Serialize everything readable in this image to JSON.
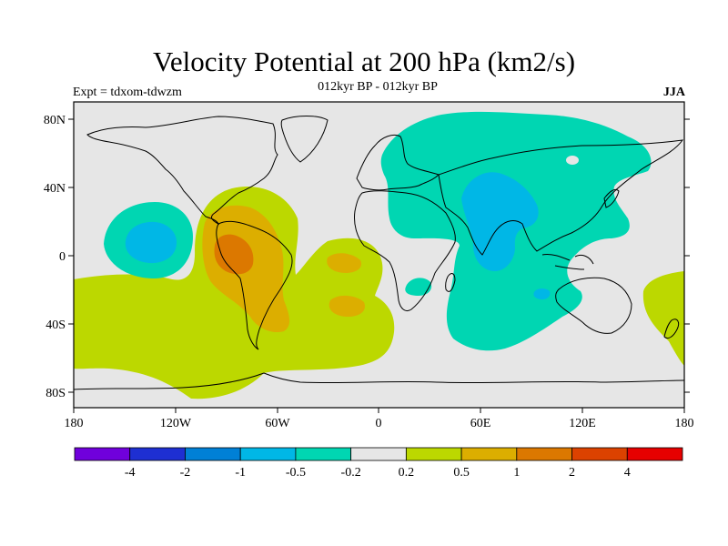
{
  "title": "Velocity Potential at 200 hPa (km2/s)",
  "subtitle": "012kyr BP - 012kyr BP",
  "experiment": "Expt = tdxom-tdwzm",
  "season": "JJA",
  "lat_labels": [
    "80N",
    "40N",
    "0",
    "40S",
    "80S"
  ],
  "lon_labels": [
    "180",
    "120W",
    "60W",
    "0",
    "60E",
    "120E",
    "180"
  ],
  "colorbar": {
    "colors": [
      "#7000dc",
      "#1e2fd2",
      "#0080d6",
      "#00b7e6",
      "#00d6b2",
      "#e6e6e6",
      "#bcd800",
      "#dcae00",
      "#dc7800",
      "#dc4200",
      "#e60000"
    ],
    "labels": [
      "-4",
      "-2",
      "-1",
      "-0.5",
      "-0.2",
      "0.2",
      "0.5",
      "1",
      "2",
      "4"
    ]
  },
  "map_colors": {
    "background": "#e6e6e6",
    "neg_weak": "#00d6b2",
    "neg_mod": "#00b7e6",
    "pos_weak": "#bcd800",
    "pos_mod": "#dcae00",
    "pos_strong": "#dc7800",
    "coast": "#000000"
  }
}
